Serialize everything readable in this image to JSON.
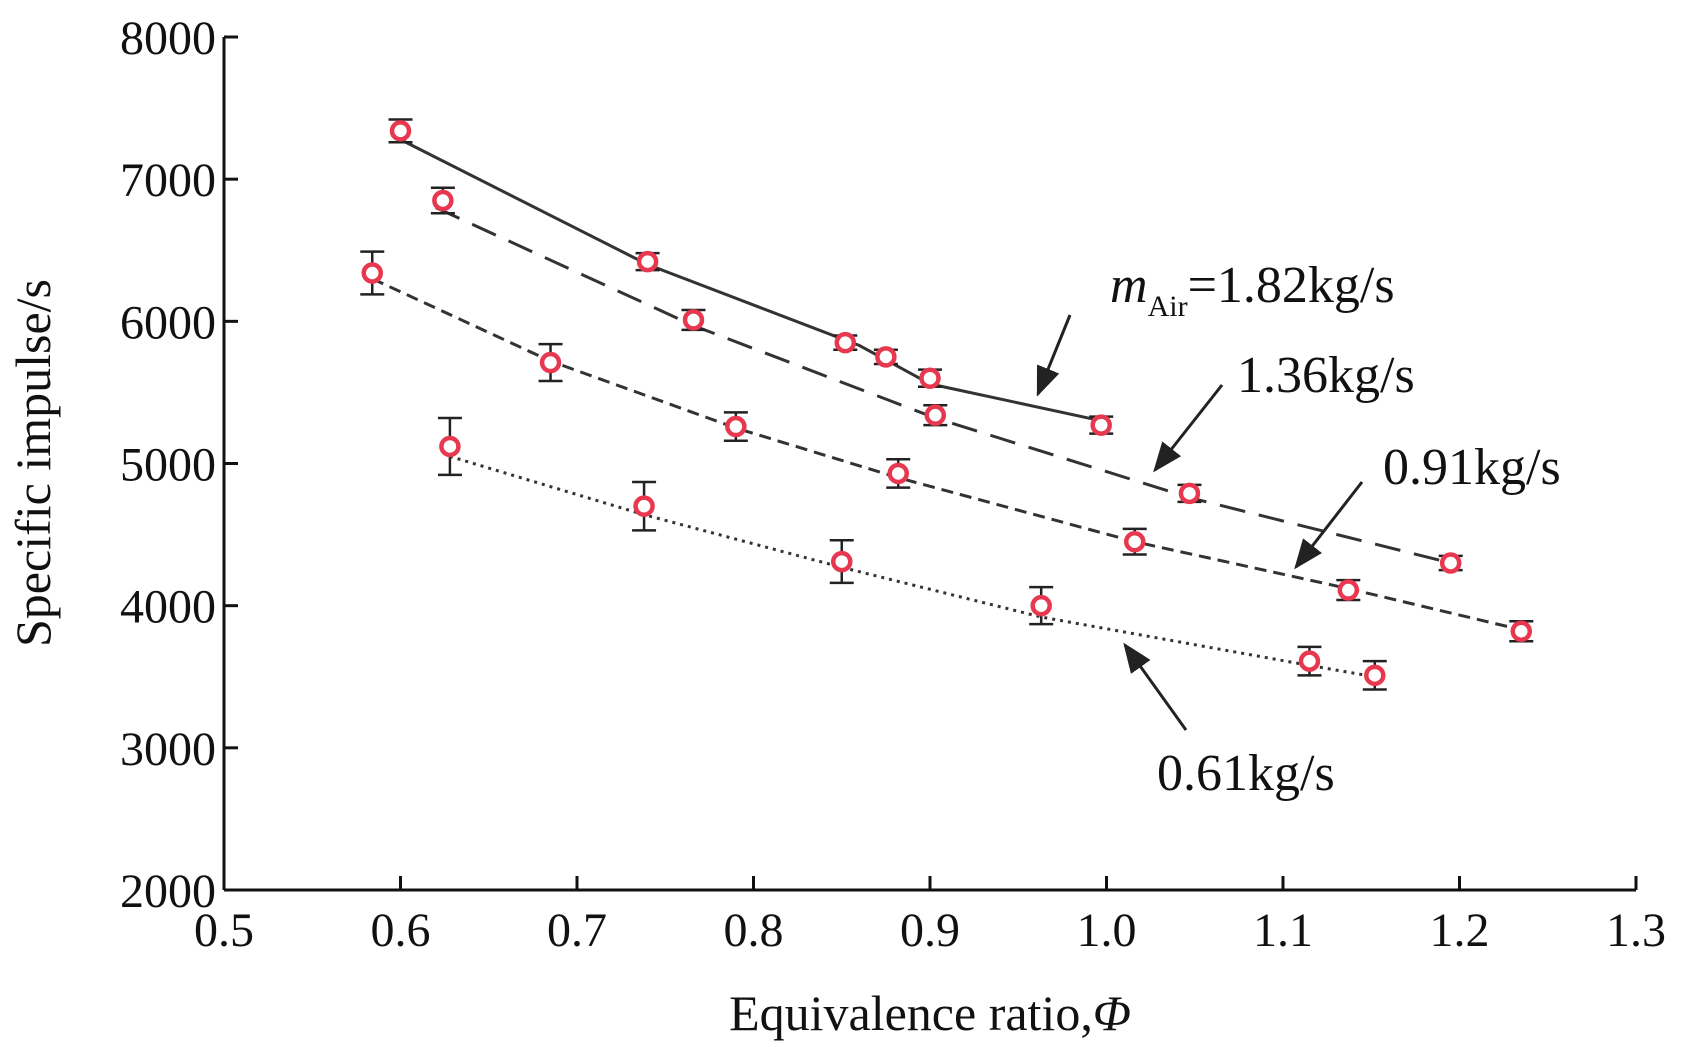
{
  "chart_data": {
    "type": "scatter",
    "title": "",
    "xlabel": "Equivalence ratio,",
    "xlabel_symbol": "Φ",
    "ylabel": "Specific impulse/s",
    "xlim": [
      0.5,
      1.3
    ],
    "ylim": [
      2000,
      8000
    ],
    "xticks": [
      "0.5",
      "0.6",
      "0.7",
      "0.8",
      "0.9",
      "1.0",
      "1.1",
      "1.2",
      "1.3"
    ],
    "yticks": [
      "2000",
      "3000",
      "4000",
      "5000",
      "6000",
      "7000",
      "8000"
    ],
    "grid": false,
    "marker_color": "#e8384f",
    "line_color": "#333333",
    "series": [
      {
        "name": "1.82kg/s",
        "line_style": "solid",
        "x": [
          0.6,
          0.74,
          0.852,
          0.875,
          0.9,
          0.997
        ],
        "y": [
          7340,
          6420,
          5850,
          5750,
          5600,
          5270
        ],
        "err": [
          80,
          60,
          50,
          50,
          60,
          60
        ],
        "fit_x": [
          0.595,
          0.74,
          0.86,
          0.9,
          0.997
        ],
        "fit_y": [
          7310,
          6400,
          5830,
          5560,
          5300
        ]
      },
      {
        "name": "1.36kg/s",
        "line_style": "dashed",
        "x": [
          0.624,
          0.766,
          0.903,
          1.047,
          1.195
        ],
        "y": [
          6850,
          6010,
          5340,
          4790,
          4300
        ],
        "err": [
          90,
          70,
          70,
          60,
          50
        ],
        "fit_x": [
          0.62,
          0.766,
          0.903,
          1.047,
          1.195
        ],
        "fit_y": [
          6800,
          5970,
          5320,
          4760,
          4300
        ]
      },
      {
        "name": "0.91kg/s",
        "line_style": "short-dashed",
        "x": [
          0.584,
          0.685,
          0.79,
          0.882,
          1.016,
          1.137,
          1.235
        ],
        "y": [
          6340,
          5710,
          5260,
          4930,
          4450,
          4110,
          3820
        ],
        "err": [
          150,
          130,
          100,
          100,
          90,
          70,
          70
        ],
        "fit_x": [
          0.584,
          0.685,
          0.79,
          0.882,
          1.016,
          1.137,
          1.235
        ],
        "fit_y": [
          6300,
          5720,
          5250,
          4900,
          4450,
          4120,
          3830
        ]
      },
      {
        "name": "0.61kg/s",
        "line_style": "dotted",
        "x": [
          0.628,
          0.738,
          0.85,
          0.963,
          1.115,
          1.152
        ],
        "y": [
          5120,
          4700,
          4310,
          4000,
          3610,
          3510
        ],
        "err": [
          200,
          170,
          150,
          130,
          100,
          100
        ],
        "fit_x": [
          0.628,
          0.738,
          0.85,
          0.963,
          1.115,
          1.152
        ],
        "fit_y": [
          5050,
          4640,
          4270,
          3920,
          3580,
          3500
        ]
      }
    ],
    "annotations": [
      {
        "text": "=1.82kg/s",
        "prefix": "m",
        "subscript": "Air",
        "points_to_series": "1.82kg/s"
      },
      {
        "text": "1.36kg/s",
        "points_to_series": "1.36kg/s"
      },
      {
        "text": "0.91kg/s",
        "points_to_series": "0.91kg/s"
      },
      {
        "text": "0.61kg/s",
        "points_to_series": "0.61kg/s"
      }
    ]
  }
}
